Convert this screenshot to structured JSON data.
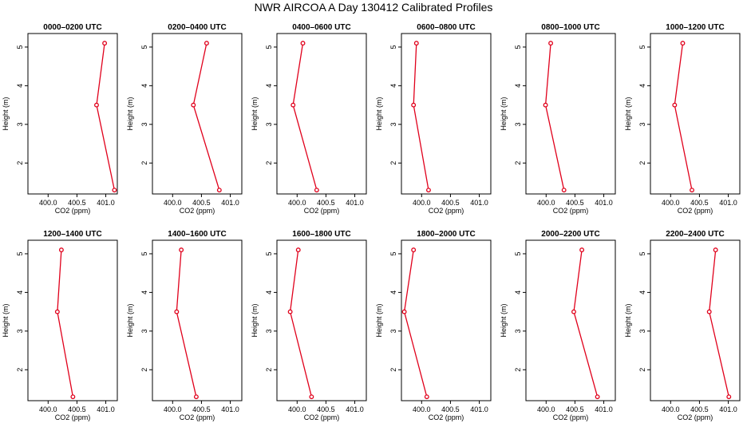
{
  "figure_title": "NWR AIRCOA A  Day 130412  Calibrated Profiles",
  "colors": {
    "line": "#e0001b",
    "marker": "#e0001b",
    "axis": "#000000"
  },
  "chart_data": [
    {
      "type": "line",
      "title": "0000–0200 UTC",
      "xlabel": "CO2 (ppm)",
      "ylabel": "Height (m)",
      "xlim": [
        399.65,
        401.2
      ],
      "ylim": [
        1.2,
        5.35
      ],
      "xticks": [
        400.0,
        400.5,
        401.0
      ],
      "xtick_labels": [
        "400.0",
        "400.5",
        "401.0"
      ],
      "yticks": [
        2,
        3,
        4,
        5
      ],
      "ytick_labels": [
        "2",
        "3",
        "4",
        "5"
      ],
      "x": [
        400.98,
        400.84,
        401.15
      ],
      "y": [
        5.1,
        3.5,
        1.3
      ]
    },
    {
      "type": "line",
      "title": "0200–0400 UTC",
      "xlabel": "CO2 (ppm)",
      "ylabel": "Height (m)",
      "xlim": [
        399.65,
        401.2
      ],
      "ylim": [
        1.2,
        5.35
      ],
      "xticks": [
        400.0,
        400.5,
        401.0
      ],
      "xtick_labels": [
        "400.0",
        "400.5",
        "401.0"
      ],
      "yticks": [
        2,
        3,
        4,
        5
      ],
      "ytick_labels": [
        "2",
        "3",
        "4",
        "5"
      ],
      "x": [
        400.59,
        400.36,
        400.81
      ],
      "y": [
        5.1,
        3.5,
        1.3
      ]
    },
    {
      "type": "line",
      "title": "0400–0600 UTC",
      "xlabel": "CO2 (ppm)",
      "ylabel": "Height (m)",
      "xlim": [
        399.65,
        401.2
      ],
      "ylim": [
        1.2,
        5.35
      ],
      "xticks": [
        400.0,
        400.5,
        401.0
      ],
      "xtick_labels": [
        "400.0",
        "400.5",
        "401.0"
      ],
      "yticks": [
        2,
        3,
        4,
        5
      ],
      "ytick_labels": [
        "2",
        "3",
        "4",
        "5"
      ],
      "x": [
        400.1,
        399.93,
        400.34
      ],
      "y": [
        5.1,
        3.5,
        1.3
      ]
    },
    {
      "type": "line",
      "title": "0600–0800 UTC",
      "xlabel": "CO2 (ppm)",
      "ylabel": "Height (m)",
      "xlim": [
        399.65,
        401.2
      ],
      "ylim": [
        1.2,
        5.35
      ],
      "xticks": [
        400.0,
        400.5,
        401.0
      ],
      "xtick_labels": [
        "400.0",
        "400.5",
        "401.0"
      ],
      "yticks": [
        2,
        3,
        4,
        5
      ],
      "ytick_labels": [
        "2",
        "3",
        "4",
        "5"
      ],
      "x": [
        399.91,
        399.86,
        400.12
      ],
      "y": [
        5.1,
        3.5,
        1.3
      ]
    },
    {
      "type": "line",
      "title": "0800–1000 UTC",
      "xlabel": "CO2 (ppm)",
      "ylabel": "Height (m)",
      "xlim": [
        399.65,
        401.2
      ],
      "ylim": [
        1.2,
        5.35
      ],
      "xticks": [
        400.0,
        400.5,
        401.0
      ],
      "xtick_labels": [
        "400.0",
        "400.5",
        "401.0"
      ],
      "yticks": [
        2,
        3,
        4,
        5
      ],
      "ytick_labels": [
        "2",
        "3",
        "4",
        "5"
      ],
      "x": [
        400.08,
        399.99,
        400.31
      ],
      "y": [
        5.1,
        3.5,
        1.3
      ]
    },
    {
      "type": "line",
      "title": "1000–1200 UTC",
      "xlabel": "CO2 (ppm)",
      "ylabel": "Height (m)",
      "xlim": [
        399.65,
        401.2
      ],
      "ylim": [
        1.2,
        5.35
      ],
      "xticks": [
        400.0,
        400.5,
        401.0
      ],
      "xtick_labels": [
        "400.0",
        "400.5",
        "401.0"
      ],
      "yticks": [
        2,
        3,
        4,
        5
      ],
      "ytick_labels": [
        "2",
        "3",
        "4",
        "5"
      ],
      "x": [
        400.21,
        400.07,
        400.37
      ],
      "y": [
        5.1,
        3.5,
        1.3
      ]
    },
    {
      "type": "line",
      "title": "1200–1400 UTC",
      "xlabel": "CO2 (ppm)",
      "ylabel": "Height (m)",
      "xlim": [
        399.65,
        401.2
      ],
      "ylim": [
        1.2,
        5.35
      ],
      "xticks": [
        400.0,
        400.5,
        401.0
      ],
      "xtick_labels": [
        "400.0",
        "400.5",
        "401.0"
      ],
      "yticks": [
        2,
        3,
        4,
        5
      ],
      "ytick_labels": [
        "2",
        "3",
        "4",
        "5"
      ],
      "x": [
        400.23,
        400.16,
        400.43
      ],
      "y": [
        5.1,
        3.5,
        1.3
      ]
    },
    {
      "type": "line",
      "title": "1400–1600 UTC",
      "xlabel": "CO2 (ppm)",
      "ylabel": "Height (m)",
      "xlim": [
        399.65,
        401.2
      ],
      "ylim": [
        1.2,
        5.35
      ],
      "xticks": [
        400.0,
        400.5,
        401.0
      ],
      "xtick_labels": [
        "400.0",
        "400.5",
        "401.0"
      ],
      "yticks": [
        2,
        3,
        4,
        5
      ],
      "ytick_labels": [
        "2",
        "3",
        "4",
        "5"
      ],
      "x": [
        400.15,
        400.07,
        400.41
      ],
      "y": [
        5.1,
        3.5,
        1.3
      ]
    },
    {
      "type": "line",
      "title": "1600–1800 UTC",
      "xlabel": "CO2 (ppm)",
      "ylabel": "Height (m)",
      "xlim": [
        399.65,
        401.2
      ],
      "ylim": [
        1.2,
        5.35
      ],
      "xticks": [
        400.0,
        400.5,
        401.0
      ],
      "xtick_labels": [
        "400.0",
        "400.5",
        "401.0"
      ],
      "yticks": [
        2,
        3,
        4,
        5
      ],
      "ytick_labels": [
        "2",
        "3",
        "4",
        "5"
      ],
      "x": [
        400.02,
        399.88,
        400.25
      ],
      "y": [
        5.1,
        3.5,
        1.3
      ]
    },
    {
      "type": "line",
      "title": "1800–2000 UTC",
      "xlabel": "CO2 (ppm)",
      "ylabel": "Height (m)",
      "xlim": [
        399.65,
        401.2
      ],
      "ylim": [
        1.2,
        5.35
      ],
      "xticks": [
        400.0,
        400.5,
        401.0
      ],
      "xtick_labels": [
        "400.0",
        "400.5",
        "401.0"
      ],
      "yticks": [
        2,
        3,
        4,
        5
      ],
      "ytick_labels": [
        "2",
        "3",
        "4",
        "5"
      ],
      "x": [
        399.86,
        399.7,
        400.09
      ],
      "y": [
        5.1,
        3.5,
        1.3
      ]
    },
    {
      "type": "line",
      "title": "2000–2200 UTC",
      "xlabel": "CO2 (ppm)",
      "ylabel": "Height (m)",
      "xlim": [
        399.65,
        401.2
      ],
      "ylim": [
        1.2,
        5.35
      ],
      "xticks": [
        400.0,
        400.5,
        401.0
      ],
      "xtick_labels": [
        "400.0",
        "400.5",
        "401.0"
      ],
      "yticks": [
        2,
        3,
        4,
        5
      ],
      "ytick_labels": [
        "2",
        "3",
        "4",
        "5"
      ],
      "x": [
        400.62,
        400.48,
        400.89
      ],
      "y": [
        5.1,
        3.5,
        1.3
      ]
    },
    {
      "type": "line",
      "title": "2200–2400 UTC",
      "xlabel": "CO2 (ppm)",
      "ylabel": "Height (m)",
      "xlim": [
        399.65,
        401.2
      ],
      "ylim": [
        1.2,
        5.35
      ],
      "xticks": [
        400.0,
        400.5,
        401.0
      ],
      "xtick_labels": [
        "400.0",
        "400.5",
        "401.0"
      ],
      "yticks": [
        2,
        3,
        4,
        5
      ],
      "ytick_labels": [
        "2",
        "3",
        "4",
        "5"
      ],
      "x": [
        400.78,
        400.67,
        401.01
      ],
      "y": [
        5.1,
        3.5,
        1.3
      ]
    }
  ]
}
